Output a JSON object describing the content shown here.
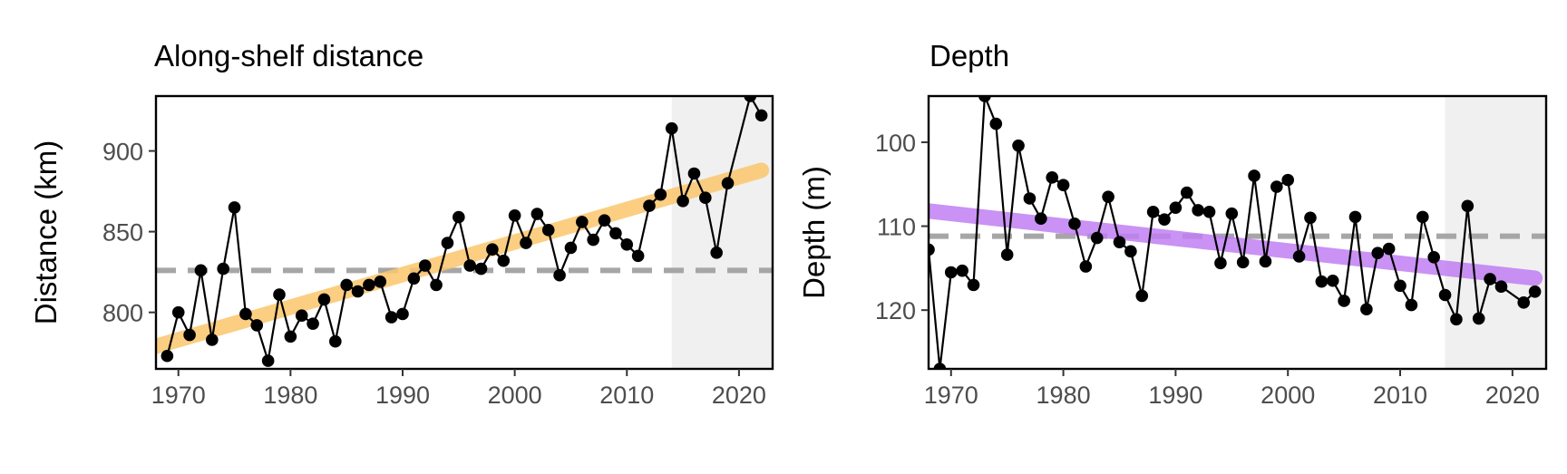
{
  "colors": {
    "background": "#ffffff",
    "shade": "#f0f0f0",
    "mean_line": "#a6a6a6",
    "points": "#000000",
    "frame": "#000000",
    "tick_text": "#4d4d4d"
  },
  "chart_data": [
    {
      "type": "line",
      "title": "Along-shelf distance",
      "xlabel": "",
      "ylabel": "Distance (km)",
      "xlim": [
        1968,
        2023
      ],
      "ylim": [
        765,
        934
      ],
      "y_reversed": false,
      "x_ticks": [
        1970,
        1980,
        1990,
        2000,
        2010,
        2020
      ],
      "y_ticks": [
        800,
        850,
        900
      ],
      "grid": false,
      "shaded_region": [
        2014,
        2023
      ],
      "mean_line": 826,
      "trend": {
        "color": "#fbc66c",
        "start": [
          1968,
          779
        ],
        "end": [
          2022,
          888
        ]
      },
      "x": [
        1969,
        1970,
        1971,
        1972,
        1973,
        1974,
        1975,
        1976,
        1977,
        1978,
        1979,
        1980,
        1981,
        1982,
        1983,
        1984,
        1985,
        1986,
        1987,
        1988,
        1989,
        1990,
        1991,
        1992,
        1993,
        1994,
        1995,
        1996,
        1997,
        1998,
        1999,
        2000,
        2001,
        2002,
        2003,
        2004,
        2005,
        2006,
        2007,
        2008,
        2009,
        2010,
        2011,
        2012,
        2013,
        2014,
        2015,
        2016,
        2017,
        2018,
        2019,
        2021,
        2022
      ],
      "values": [
        773,
        800,
        786,
        826,
        783,
        827,
        865,
        799,
        792,
        770,
        811,
        785,
        798,
        793,
        808,
        782,
        817,
        813,
        817,
        819,
        797,
        799,
        821,
        829,
        817,
        843,
        859,
        829,
        827,
        839,
        832,
        860,
        843,
        861,
        851,
        823,
        840,
        856,
        845,
        857,
        849,
        842,
        835,
        866,
        873,
        914,
        869,
        886,
        871,
        837,
        880,
        934,
        922
      ]
    },
    {
      "type": "line",
      "title": "Depth",
      "xlabel": "",
      "ylabel": "Depth (m)",
      "xlim": [
        1968,
        2023
      ],
      "ylim": [
        127,
        94.5
      ],
      "y_reversed": true,
      "x_ticks": [
        1970,
        1980,
        1990,
        2000,
        2010,
        2020
      ],
      "y_ticks": [
        100,
        110,
        120
      ],
      "grid": false,
      "shaded_region": [
        2014,
        2023
      ],
      "mean_line": 111.2,
      "trend": {
        "color": "#c17ff3",
        "start": [
          1968,
          108.2
        ],
        "end": [
          2022,
          116.2
        ]
      },
      "x": [
        1968,
        1969,
        1970,
        1971,
        1972,
        1973,
        1974,
        1975,
        1976,
        1977,
        1978,
        1979,
        1980,
        1981,
        1982,
        1983,
        1984,
        1985,
        1986,
        1987,
        1988,
        1989,
        1990,
        1991,
        1992,
        1993,
        1994,
        1995,
        1996,
        1997,
        1998,
        1999,
        2000,
        2001,
        2002,
        2003,
        2004,
        2005,
        2006,
        2007,
        2008,
        2009,
        2010,
        2011,
        2012,
        2013,
        2014,
        2015,
        2016,
        2017,
        2018,
        2019,
        2021,
        2022
      ],
      "values": [
        112.8,
        127.0,
        115.5,
        115.3,
        117.0,
        94.5,
        97.8,
        113.4,
        100.4,
        106.7,
        109.1,
        104.2,
        105.1,
        109.7,
        114.8,
        111.4,
        106.5,
        111.9,
        113.0,
        118.3,
        108.3,
        109.2,
        107.8,
        106.0,
        108.1,
        108.3,
        114.4,
        108.5,
        114.3,
        104.0,
        114.2,
        105.3,
        104.5,
        113.6,
        109.0,
        116.6,
        116.5,
        118.9,
        108.9,
        119.9,
        113.2,
        112.7,
        117.1,
        119.4,
        108.9,
        113.7,
        118.2,
        121.1,
        107.6,
        121.0,
        116.3,
        117.2,
        119.1,
        117.8
      ]
    }
  ]
}
